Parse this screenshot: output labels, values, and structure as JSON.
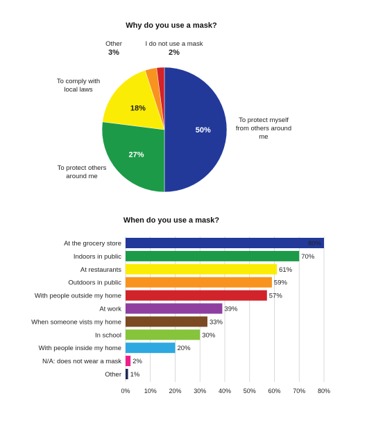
{
  "chart_data": [
    {
      "type": "pie",
      "title": "Why do you use a mask?",
      "slices": [
        {
          "label": "To protect myself from others around me",
          "value": 50,
          "display": "50%",
          "color": "#22399a"
        },
        {
          "label": "To protect others around me",
          "value": 27,
          "display": "27%",
          "color": "#1c9a48"
        },
        {
          "label": "To comply with local laws",
          "value": 18,
          "display": "18%",
          "color": "#fbec05"
        },
        {
          "label": "Other",
          "value": 3,
          "display": "3%",
          "color": "#f7931e"
        },
        {
          "label": "I do not use a mask",
          "value": 2,
          "display": "2%",
          "color": "#d1232a"
        }
      ]
    },
    {
      "type": "bar",
      "orientation": "horizontal",
      "title": "When do you use a mask?",
      "categories": [
        "At the grocery store",
        "Indoors in public",
        "At restaurants",
        "Outdoors in public",
        "With people outside my home",
        "At work",
        "When someone vists my home",
        "In school",
        "With people inside my home",
        "N/A: does not wear a mask",
        "Other"
      ],
      "values": [
        80,
        70,
        61,
        59,
        57,
        39,
        33,
        30,
        20,
        2,
        1
      ],
      "value_labels": [
        "80%",
        "70%",
        "61%",
        "59%",
        "57%",
        "39%",
        "33%",
        "30%",
        "20%",
        "2%",
        "1%"
      ],
      "colors": [
        "#22399a",
        "#1c9a48",
        "#fbec05",
        "#f7931e",
        "#d1232a",
        "#8e3fa0",
        "#7b4a22",
        "#86c43c",
        "#2ea8e0",
        "#ec1e8a",
        "#1f2b55"
      ],
      "xlim": [
        0,
        80
      ],
      "xticks": [
        "0%",
        "10%",
        "20%",
        "30%",
        "40%",
        "50%",
        "60%",
        "70%",
        "80%"
      ],
      "grid": true
    }
  ]
}
